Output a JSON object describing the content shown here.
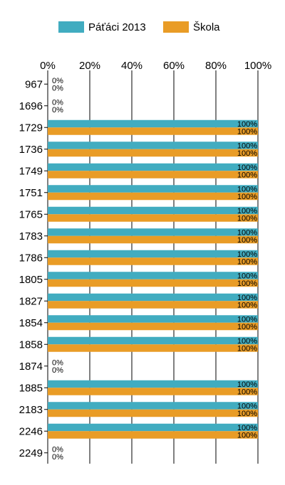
{
  "legend": {
    "series1_label": "Páťáci 2013",
    "series2_label": "Škola"
  },
  "colors": {
    "series1": "#41acc0",
    "series2": "#e99c26",
    "grid": "#000000"
  },
  "chart_data": {
    "type": "bar",
    "orientation": "horizontal",
    "title": "",
    "xlabel": "",
    "ylabel": "",
    "xlim": [
      0,
      100
    ],
    "x_ticks": [
      "0%",
      "20%",
      "40%",
      "60%",
      "80%",
      "100%"
    ],
    "legend_position": "top",
    "grid": true,
    "categories": [
      "967",
      "1696",
      "1729",
      "1736",
      "1749",
      "1751",
      "1765",
      "1783",
      "1786",
      "1805",
      "1827",
      "1854",
      "1858",
      "1874",
      "1885",
      "2183",
      "2246",
      "2249"
    ],
    "series": [
      {
        "name": "Páťáci 2013",
        "values": [
          0,
          0,
          100,
          100,
          100,
          100,
          100,
          100,
          100,
          100,
          100,
          100,
          100,
          0,
          100,
          100,
          100,
          0
        ]
      },
      {
        "name": "Škola",
        "values": [
          0,
          0,
          100,
          100,
          100,
          100,
          100,
          100,
          100,
          100,
          100,
          100,
          100,
          0,
          100,
          100,
          100,
          0
        ]
      }
    ],
    "value_labels": {
      "Páťáci 2013": [
        "0%",
        "0%",
        "100%",
        "100%",
        "100%",
        "100%",
        "100%",
        "100%",
        "100%",
        "100%",
        "100%",
        "100%",
        "100%",
        "0%",
        "100%",
        "100%",
        "100%",
        "0%"
      ],
      "Škola": [
        "0%",
        "0%",
        "100%",
        "100%",
        "100%",
        "100%",
        "100%",
        "100%",
        "100%",
        "100%",
        "100%",
        "100%",
        "100%",
        "0%",
        "100%",
        "100%",
        "100%",
        "0%"
      ]
    }
  }
}
